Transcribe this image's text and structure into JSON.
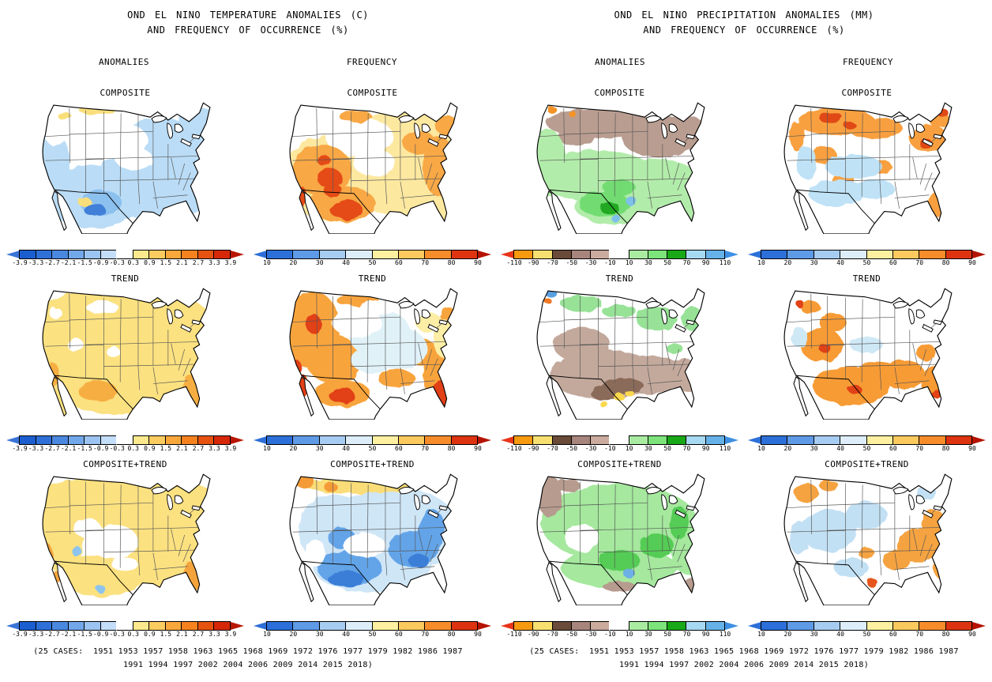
{
  "left_section": {
    "title_line1": "OND EL NINO TEMPERATURE ANOMALIES (C)",
    "title_line2": "AND FREQUENCY OF OCCURRENCE (%)",
    "col1_header": "ANOMALIES",
    "col2_header": "FREQUENCY",
    "caption_line1": "(25 CASES:  1951 1953 1957 1958 1963 1965 1968 1969 1972 1976 1977 1979 1982 1986 1987",
    "caption_line2": "1991 1994 1997 2002 2004 2006 2009 2014 2015 2018)"
  },
  "right_section": {
    "title_line1": "OND EL NINO PRECIPITATION ANOMALIES (MM)",
    "title_line2": "AND FREQUENCY OF OCCURRENCE (%)",
    "col1_header": "ANOMALIES",
    "col2_header": "FREQUENCY",
    "caption_line1": "(25 CASES:  1951 1953 1957 1958 1963 1965 1968 1969 1972 1976 1977 1979 1982 1986 1987",
    "caption_line2": "1991 1994 1997 2002 2004 2006 2009 2014 2015 2018)"
  },
  "row_labels": [
    "COMPOSITE",
    "TREND",
    "COMPOSITE+TREND"
  ],
  "panels": [
    {
      "id": "temp-anom-composite",
      "section": "temperature",
      "column": "ANOMALIES",
      "label": "COMPOSITE",
      "colorbar": "temp_anomalies"
    },
    {
      "id": "temp-freq-composite",
      "section": "temperature",
      "column": "FREQUENCY",
      "label": "COMPOSITE",
      "colorbar": "frequency"
    },
    {
      "id": "precip-anom-composite",
      "section": "precipitation",
      "column": "ANOMALIES",
      "label": "COMPOSITE",
      "colorbar": "precip_anomalies"
    },
    {
      "id": "precip-freq-composite",
      "section": "precipitation",
      "column": "FREQUENCY",
      "label": "COMPOSITE",
      "colorbar": "frequency"
    },
    {
      "id": "temp-anom-trend",
      "section": "temperature",
      "column": "ANOMALIES",
      "label": "TREND",
      "colorbar": "temp_anomalies"
    },
    {
      "id": "temp-freq-trend",
      "section": "temperature",
      "column": "FREQUENCY",
      "label": "TREND",
      "colorbar": "frequency"
    },
    {
      "id": "precip-anom-trend",
      "section": "precipitation",
      "column": "ANOMALIES",
      "label": "TREND",
      "colorbar": "precip_anomalies"
    },
    {
      "id": "precip-freq-trend",
      "section": "precipitation",
      "column": "FREQUENCY",
      "label": "TREND",
      "colorbar": "frequency"
    },
    {
      "id": "temp-anom-composite-trend",
      "section": "temperature",
      "column": "ANOMALIES",
      "label": "COMPOSITE+TREND",
      "colorbar": "temp_anomalies"
    },
    {
      "id": "temp-freq-composite-trend",
      "section": "temperature",
      "column": "FREQUENCY",
      "label": "COMPOSITE+TREND",
      "colorbar": "frequency"
    },
    {
      "id": "precip-anom-composite-trend",
      "section": "precipitation",
      "column": "ANOMALIES",
      "label": "COMPOSITE+TREND",
      "colorbar": "precip_anomalies"
    },
    {
      "id": "precip-freq-composite-trend",
      "section": "precipitation",
      "column": "FREQUENCY",
      "label": "COMPOSITE+TREND",
      "colorbar": "frequency"
    }
  ],
  "colorbars": {
    "temp_anomalies": {
      "ticks": [
        "-3.9",
        "-3.3",
        "-2.7",
        "-2.1",
        "-1.5",
        "-0.9",
        "-0.3",
        "0.3",
        "0.9",
        "1.5",
        "2.1",
        "2.7",
        "3.3",
        "3.9"
      ],
      "segments": [
        "#1b5ed0",
        "#2e70d8",
        "#4a88e0",
        "#72a8ea",
        "#9cc4f2",
        "#c4ddf8",
        "gap",
        "#fce98e",
        "#fccc60",
        "#faa83c",
        "#f5821e",
        "#e65310",
        "#d62808"
      ],
      "left_arrow": "#3a74d6",
      "right_arrow": "#b81600"
    },
    "frequency": {
      "ticks": [
        "10",
        "20",
        "30",
        "40",
        "50",
        "60",
        "70",
        "80",
        "90"
      ],
      "segments": [
        "#2c6fd8",
        "#5e9ae6",
        "#a6ccf2",
        "#ddeefa",
        "#fdf0a0",
        "#fbc95e",
        "#f78c2a",
        "#dd3310"
      ],
      "left_arrow": "#2c6fd8",
      "right_arrow": "#b51200"
    },
    "precip_anomalies": {
      "ticks": [
        "-110",
        "-90",
        "-70",
        "-50",
        "-30",
        "-10",
        "10",
        "30",
        "50",
        "70",
        "90",
        "110"
      ],
      "segments": [
        "#f89a10",
        "#f7e070",
        "#6a4a38",
        "#a8857c",
        "#cbab9e",
        "gap",
        "#a9eca1",
        "#7ce47a",
        "#18a818",
        "#a6d9f2",
        "#66b2e8"
      ],
      "left_arrow": "#e83418",
      "right_arrow": "#3e90e4"
    }
  }
}
